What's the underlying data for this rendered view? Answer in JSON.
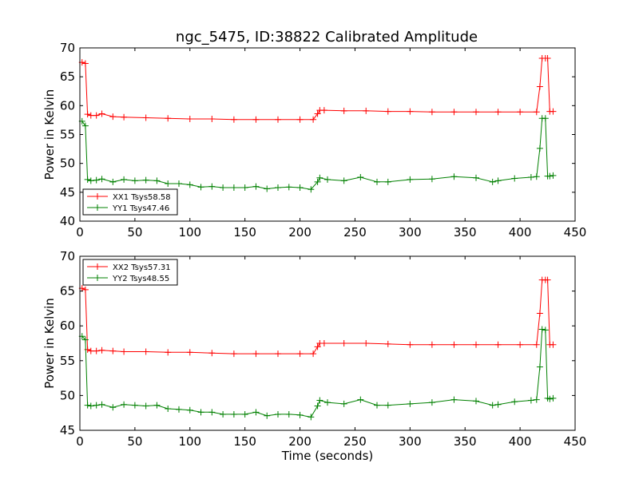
{
  "chart_data": [
    {
      "type": "line",
      "title": "ngc_5475, ID:38822 Calibrated Amplitude",
      "xlabel": "",
      "ylabel": "Power in Kelvin",
      "xlim": [
        0,
        450
      ],
      "ylim": [
        40,
        70
      ],
      "xticks": [
        0,
        50,
        100,
        150,
        200,
        250,
        300,
        350,
        400,
        450
      ],
      "yticks": [
        40,
        45,
        50,
        55,
        60,
        65,
        70
      ],
      "grid": false,
      "legend_position": "lower-left",
      "series": [
        {
          "name": "XX1 Tsys58.58",
          "color": "#ff0000",
          "marker": "+",
          "x": [
            2,
            5,
            7,
            10,
            15,
            20,
            30,
            40,
            60,
            80,
            100,
            120,
            140,
            160,
            180,
            200,
            212,
            216,
            218,
            222,
            240,
            260,
            280,
            300,
            320,
            340,
            360,
            380,
            400,
            415,
            418,
            420,
            423,
            425,
            427,
            430
          ],
          "y": [
            67.5,
            67.3,
            58.5,
            58.3,
            58.3,
            58.6,
            58.1,
            58.0,
            57.9,
            57.8,
            57.7,
            57.7,
            57.6,
            57.6,
            57.6,
            57.6,
            57.6,
            58.6,
            59.2,
            59.2,
            59.1,
            59.1,
            59.0,
            59.0,
            58.9,
            58.9,
            58.9,
            58.9,
            58.9,
            58.9,
            63.3,
            68.2,
            68.2,
            68.2,
            59.0,
            59.0
          ]
        },
        {
          "name": "YY1 Tsys47.46",
          "color": "#008000",
          "marker": "+",
          "x": [
            2,
            5,
            7,
            10,
            15,
            20,
            30,
            40,
            50,
            60,
            70,
            80,
            90,
            100,
            110,
            120,
            130,
            140,
            150,
            160,
            170,
            180,
            190,
            200,
            210,
            216,
            218,
            225,
            240,
            255,
            270,
            280,
            300,
            320,
            340,
            360,
            375,
            380,
            395,
            410,
            415,
            418,
            420,
            423,
            425,
            427,
            430
          ],
          "y": [
            57.3,
            56.5,
            47.2,
            47.0,
            47.1,
            47.3,
            46.8,
            47.2,
            47.0,
            47.1,
            47.0,
            46.5,
            46.5,
            46.3,
            45.9,
            46.0,
            45.8,
            45.8,
            45.8,
            46.0,
            45.6,
            45.8,
            45.9,
            45.8,
            45.5,
            46.8,
            47.5,
            47.2,
            47.0,
            47.6,
            46.8,
            46.8,
            47.2,
            47.3,
            47.7,
            47.5,
            46.8,
            47.0,
            47.4,
            47.6,
            47.7,
            52.6,
            57.8,
            57.8,
            47.8,
            47.8,
            47.9
          ]
        }
      ]
    },
    {
      "type": "line",
      "title": "",
      "xlabel": "Time (seconds)",
      "ylabel": "Power in Kelvin",
      "xlim": [
        0,
        450
      ],
      "ylim": [
        45,
        70
      ],
      "xticks": [
        0,
        50,
        100,
        150,
        200,
        250,
        300,
        350,
        400,
        450
      ],
      "yticks": [
        45,
        50,
        55,
        60,
        65,
        70
      ],
      "grid": false,
      "legend_position": "top-left",
      "series": [
        {
          "name": "XX2 Tsys57.31",
          "color": "#ff0000",
          "marker": "+",
          "x": [
            2,
            5,
            7,
            10,
            15,
            20,
            30,
            40,
            60,
            80,
            100,
            120,
            140,
            160,
            180,
            200,
            212,
            216,
            218,
            222,
            240,
            260,
            280,
            300,
            320,
            340,
            360,
            380,
            400,
            415,
            418,
            420,
            423,
            425,
            427,
            430
          ],
          "y": [
            65.4,
            65.2,
            56.6,
            56.4,
            56.4,
            56.5,
            56.4,
            56.3,
            56.3,
            56.2,
            56.2,
            56.1,
            56.0,
            56.0,
            56.0,
            56.0,
            56.0,
            57.0,
            57.5,
            57.5,
            57.5,
            57.5,
            57.4,
            57.3,
            57.3,
            57.3,
            57.3,
            57.3,
            57.3,
            57.3,
            61.8,
            66.6,
            66.6,
            66.6,
            57.3,
            57.3
          ]
        },
        {
          "name": "YY2 Tsys48.55",
          "color": "#008000",
          "marker": "+",
          "x": [
            2,
            5,
            7,
            10,
            15,
            20,
            30,
            40,
            50,
            60,
            70,
            80,
            90,
            100,
            110,
            120,
            130,
            140,
            150,
            160,
            170,
            180,
            190,
            200,
            210,
            216,
            218,
            225,
            240,
            255,
            270,
            280,
            300,
            320,
            340,
            360,
            375,
            380,
            395,
            410,
            415,
            418,
            420,
            423,
            425,
            427,
            430
          ],
          "y": [
            58.5,
            58.0,
            48.6,
            48.5,
            48.6,
            48.7,
            48.3,
            48.7,
            48.6,
            48.5,
            48.6,
            48.1,
            48.0,
            47.9,
            47.6,
            47.6,
            47.3,
            47.3,
            47.3,
            47.6,
            47.1,
            47.3,
            47.3,
            47.2,
            46.9,
            48.5,
            49.3,
            49.0,
            48.8,
            49.4,
            48.6,
            48.6,
            48.8,
            49.0,
            49.4,
            49.2,
            48.6,
            48.7,
            49.1,
            49.3,
            49.4,
            54.1,
            59.5,
            59.4,
            49.6,
            49.5,
            49.6
          ]
        }
      ]
    }
  ]
}
